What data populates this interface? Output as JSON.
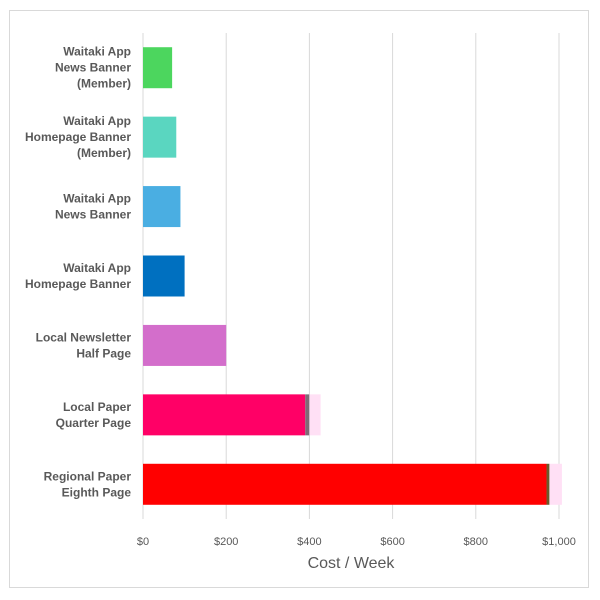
{
  "chart_data": {
    "type": "bar",
    "orientation": "horizontal",
    "stacked": true,
    "title": "",
    "xlabel": "Cost  / Week",
    "ylabel": "",
    "xlim": [
      0,
      1000
    ],
    "xticks": [
      0,
      200,
      400,
      600,
      800,
      1000
    ],
    "xtick_labels": [
      "$0",
      "$200",
      "$400",
      "$600",
      "$800",
      "$1,000"
    ],
    "grid": "vertical",
    "legend": "none",
    "categories": [
      "Waitaki App\nNews Banner\n(Member)",
      "Waitaki App\nHomepage Banner\n(Member)",
      "Waitaki App\nNews Banner",
      "Waitaki App\nHomepage Banner",
      "Local Newsletter\nHalf Page",
      "Local Paper\nQuarter Page",
      "Regional Paper\nEighth Page"
    ],
    "series": [
      {
        "values": [
          70,
          80,
          90,
          100,
          200,
          390,
          970
        ],
        "colors": [
          "#4cd65e",
          "#5ad6c0",
          "#4aaee2",
          "#0070c0",
          "#d36ecb",
          "#ff0066",
          "#ff0000"
        ]
      },
      {
        "values": [
          0,
          0,
          0,
          0,
          0,
          10,
          7
        ],
        "colors": [
          "#7f7f7f",
          "#7f7f7f",
          "#7f7f7f",
          "#7f7f7f",
          "#7f7f7f",
          "#7f6a76",
          "#6b5a2a"
        ]
      },
      {
        "values": [
          0,
          0,
          0,
          0,
          0,
          27,
          30
        ],
        "colors": [
          "#ffe0f5",
          "#ffe0f5",
          "#ffe0f5",
          "#ffe0f5",
          "#ffe0f5",
          "#ffe0f5",
          "#ffe0f5"
        ]
      }
    ],
    "colors": {
      "gridline": "#d9d9d9",
      "text": "#595959"
    }
  }
}
